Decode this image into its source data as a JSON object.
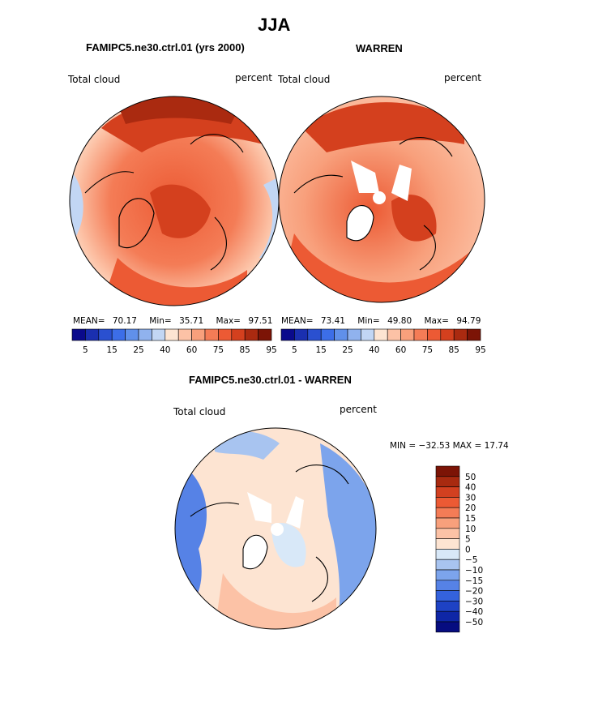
{
  "season": "JJA",
  "panels": [
    {
      "title": "FAMIPC5.ne30.ctrl.01 (yrs 2000)",
      "variable": "Total cloud",
      "units": "percent",
      "stats": {
        "mean_label": "MEAN=",
        "mean": "70.17",
        "min_label": "Min=",
        "min": "35.71",
        "max_label": "Max=",
        "max": "97.51"
      }
    },
    {
      "title": "WARREN",
      "variable": "Total cloud",
      "units": "percent",
      "stats": {
        "mean_label": "MEAN=",
        "mean": "73.41",
        "min_label": "Min=",
        "min": "49.80",
        "max_label": "Max=",
        "max": "94.79"
      }
    },
    {
      "title": "FAMIPC5.ne30.ctrl.01 - WARREN",
      "variable": "Total cloud",
      "units": "percent",
      "minmax_text": "MIN = −32.53  MAX =   17.74"
    }
  ],
  "colors": {
    "abs_bar": [
      "#0a0a8c",
      "#1a2fb0",
      "#2a50d0",
      "#3c6ee8",
      "#6090ea",
      "#90b2ee",
      "#c2d6f4",
      "#fde4d2",
      "#fcc2a6",
      "#f8a07c",
      "#f47c56",
      "#ec5a34",
      "#d4401e",
      "#aa2a10",
      "#7c1406"
    ],
    "diff_bar": [
      "#7c1406",
      "#a82a10",
      "#d24020",
      "#ec5a34",
      "#f47c56",
      "#f8a07c",
      "#fcc2a6",
      "#fde4d2",
      "#d8e8f8",
      "#a8c4f0",
      "#7ca4ec",
      "#5682e6",
      "#3462dc",
      "#1e42c4",
      "#0e26a6",
      "#060c80"
    ]
  },
  "chart_data": [
    {
      "type": "heatmap",
      "title": "FAMIPC5.ne30.ctrl.01 (yrs 2000)",
      "variable": "Total cloud",
      "units": "percent",
      "projection": "north polar stereographic",
      "stats": {
        "mean": 70.17,
        "min": 35.71,
        "max": 97.51
      },
      "colorbar_levels": [
        5,
        10,
        15,
        20,
        25,
        30,
        40,
        50,
        60,
        70,
        75,
        80,
        85,
        90,
        95
      ],
      "colorbar_tick_labels": [
        "5",
        "15",
        "25",
        "40",
        "60",
        "75",
        "85",
        "95"
      ]
    },
    {
      "type": "heatmap",
      "title": "WARREN",
      "variable": "Total cloud",
      "units": "percent",
      "projection": "north polar stereographic",
      "stats": {
        "mean": 73.41,
        "min": 49.8,
        "max": 94.79
      },
      "colorbar_levels": [
        5,
        10,
        15,
        20,
        25,
        30,
        40,
        50,
        60,
        70,
        75,
        80,
        85,
        90,
        95
      ],
      "colorbar_tick_labels": [
        "5",
        "15",
        "25",
        "40",
        "60",
        "75",
        "85",
        "95"
      ]
    },
    {
      "type": "heatmap",
      "title": "FAMIPC5.ne30.ctrl.01 - WARREN",
      "variable": "Total cloud",
      "units": "percent",
      "projection": "north polar stereographic",
      "stats": {
        "min": -32.53,
        "max": 17.74
      },
      "colorbar_levels": [
        50,
        40,
        30,
        20,
        15,
        10,
        5,
        0,
        -5,
        -10,
        -15,
        -20,
        -30,
        -40,
        -50
      ],
      "colorbar_tick_labels": [
        "50",
        "40",
        "30",
        "20",
        "15",
        "10",
        "5",
        "0",
        "−5",
        "−10",
        "−15",
        "−20",
        "−30",
        "−40",
        "−50"
      ]
    }
  ]
}
